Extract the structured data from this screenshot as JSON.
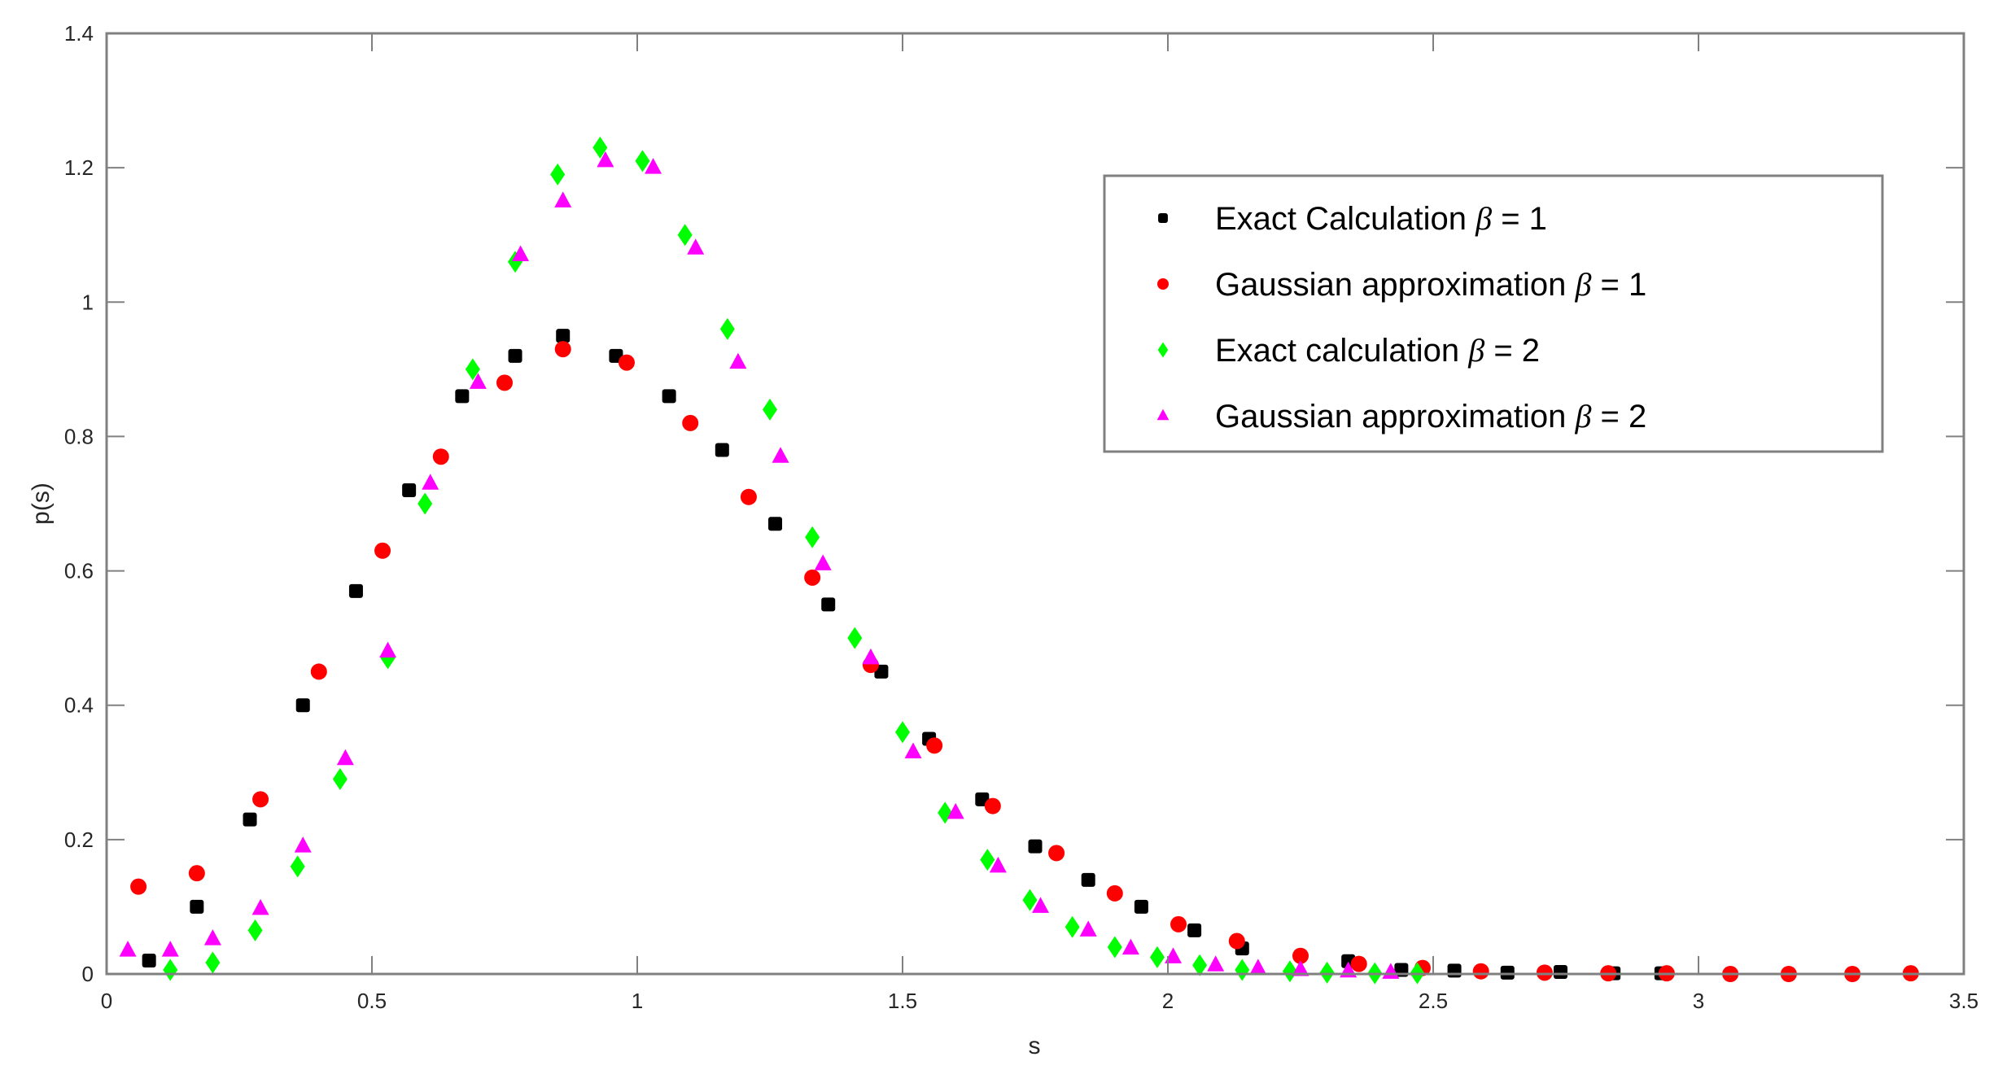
{
  "chart_data": {
    "type": "scatter",
    "title": "",
    "xlabel": "s",
    "ylabel": "p(s)",
    "xlim": [
      0,
      3.5
    ],
    "ylim": [
      0,
      1.4
    ],
    "xticks": [
      "0",
      "0.5",
      "1",
      "1.5",
      "2",
      "2.5",
      "3",
      "3.5"
    ],
    "yticks": [
      "0",
      "0.2",
      "0.4",
      "0.6",
      "0.8",
      "1",
      "1.2",
      "1.4"
    ],
    "grid": false,
    "legend_position": "upper right",
    "series": [
      {
        "name": "Exact Calculation β = 1",
        "label_text": "Exact Calculation",
        "label_value": "= 1",
        "marker": "square",
        "color": "#000000",
        "x": [
          0.08,
          0.17,
          0.27,
          0.37,
          0.47,
          0.57,
          0.67,
          0.77,
          0.86,
          0.96,
          1.06,
          1.16,
          1.26,
          1.36,
          1.46,
          1.55,
          1.65,
          1.75,
          1.85,
          1.95,
          2.05,
          2.14,
          2.34,
          2.44,
          2.54,
          2.64,
          2.74,
          2.84,
          2.93
        ],
        "y": [
          0.02,
          0.1,
          0.23,
          0.4,
          0.57,
          0.72,
          0.86,
          0.92,
          0.95,
          0.92,
          0.86,
          0.78,
          0.67,
          0.55,
          0.45,
          0.35,
          0.26,
          0.19,
          0.14,
          0.1,
          0.065,
          0.038,
          0.019,
          0.006,
          0.005,
          0.002,
          0.003,
          0.001,
          0.001
        ]
      },
      {
        "name": "Gaussian approximation β = 1",
        "label_text": "Gaussian approximation",
        "label_value": "= 1",
        "marker": "circle",
        "color": "#ff0000",
        "x": [
          0.06,
          0.17,
          0.29,
          0.4,
          0.52,
          0.63,
          0.75,
          0.86,
          0.98,
          1.1,
          1.21,
          1.33,
          1.44,
          1.56,
          1.67,
          1.79,
          1.9,
          2.02,
          2.13,
          2.25,
          2.36,
          2.48,
          2.59,
          2.71,
          2.83,
          2.94,
          3.06,
          3.17,
          3.29,
          3.4
        ],
        "y": [
          0.13,
          0.15,
          0.26,
          0.45,
          0.63,
          0.77,
          0.88,
          0.93,
          0.91,
          0.82,
          0.71,
          0.59,
          0.46,
          0.34,
          0.25,
          0.18,
          0.12,
          0.074,
          0.049,
          0.027,
          0.015,
          0.009,
          0.004,
          0.002,
          0.001,
          0.001,
          0.0,
          0.0,
          0.0,
          0.001
        ]
      },
      {
        "name": "Exact calculation β = 2",
        "label_text": "Exact calculation",
        "label_value": "= 2",
        "marker": "diamond",
        "color": "#00ff00",
        "x": [
          0.12,
          0.2,
          0.28,
          0.36,
          0.44,
          0.53,
          0.6,
          0.69,
          0.77,
          0.85,
          0.93,
          1.01,
          1.09,
          1.17,
          1.25,
          1.33,
          1.41,
          1.5,
          1.58,
          1.66,
          1.74,
          1.82,
          1.9,
          1.98,
          2.06,
          2.14,
          2.23,
          2.3,
          2.39,
          2.47
        ],
        "y": [
          0.006,
          0.017,
          0.065,
          0.16,
          0.29,
          0.47,
          0.7,
          0.9,
          1.06,
          1.19,
          1.23,
          1.21,
          1.1,
          0.96,
          0.84,
          0.65,
          0.5,
          0.36,
          0.24,
          0.17,
          0.11,
          0.07,
          0.04,
          0.025,
          0.013,
          0.006,
          0.004,
          0.002,
          0.001,
          0.001
        ]
      },
      {
        "name": "Gaussian approximation β = 2",
        "label_text": "Gaussian approximation",
        "label_value": "= 2",
        "marker": "triangle",
        "color": "#ff00ff",
        "x": [
          0.04,
          0.12,
          0.2,
          0.29,
          0.37,
          0.45,
          0.53,
          0.61,
          0.7,
          0.78,
          0.86,
          0.94,
          1.03,
          1.11,
          1.19,
          1.27,
          1.35,
          1.44,
          1.52,
          1.6,
          1.68,
          1.76,
          1.85,
          1.93,
          2.01,
          2.09,
          2.17,
          2.25,
          2.34,
          2.42
        ],
        "y": [
          0.035,
          0.035,
          0.052,
          0.097,
          0.19,
          0.32,
          0.48,
          0.73,
          0.88,
          1.07,
          1.15,
          1.21,
          1.2,
          1.08,
          0.91,
          0.77,
          0.61,
          0.47,
          0.33,
          0.24,
          0.16,
          0.1,
          0.065,
          0.038,
          0.025,
          0.013,
          0.008,
          0.006,
          0.004,
          0.002
        ]
      }
    ]
  },
  "beta_symbol": "β"
}
